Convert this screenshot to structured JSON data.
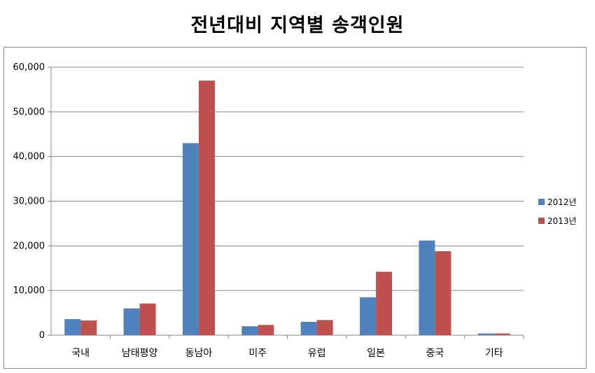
{
  "chart_data": {
    "type": "bar",
    "title": "전년대비 지역별 송객인원",
    "categories": [
      "국내",
      "남태평양",
      "동남아",
      "미주",
      "유럽",
      "일본",
      "중국",
      "기타"
    ],
    "series": [
      {
        "name": "2012년",
        "color": "#4f81bd",
        "values": [
          3600,
          6000,
          43000,
          2000,
          3000,
          8500,
          21200,
          400
        ]
      },
      {
        "name": "2013년",
        "color": "#c0504d",
        "values": [
          3300,
          7100,
          57000,
          2300,
          3400,
          14200,
          18800,
          400
        ]
      }
    ],
    "y_ticks": [
      "0",
      "10,000",
      "20,000",
      "30,000",
      "40,000",
      "50,000",
      "60,000"
    ],
    "ylim": [
      0,
      60000
    ],
    "grid": true,
    "legend_position": "right"
  }
}
